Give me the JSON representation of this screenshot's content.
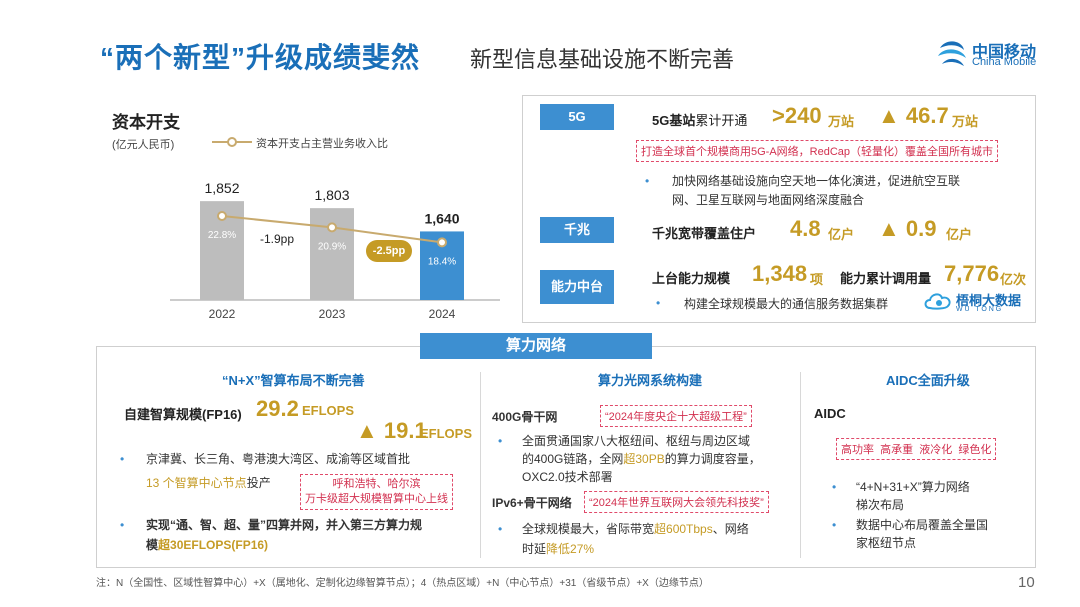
{
  "header": {
    "title": "“两个新型”升级成绩斐然",
    "subtitle": "新型信息基础设施不断完善",
    "logo_cn": "中国移动",
    "logo_en": "China Mobile"
  },
  "capex": {
    "title": "资本开支",
    "unit": "(亿元人民币)",
    "legend": "资本开支占主营业务收入比",
    "yoy_1": "-1.9pp",
    "yoy_2": "-2.5pp",
    "colors": {
      "gray": "#bdbdbd",
      "blue": "#3d8fd1",
      "line": "#c8aa6e"
    }
  },
  "chart_data": {
    "type": "bar",
    "categories": [
      "2022",
      "2023",
      "2024"
    ],
    "values": [
      1852,
      1803,
      1640
    ],
    "value_labels": [
      "1,852",
      "1,803",
      "1,640"
    ],
    "ratio": [
      22.8,
      20.9,
      18.4
    ],
    "ratio_labels": [
      "22.8%",
      "20.9%",
      "18.4%"
    ],
    "ylim": [
      0,
      2000
    ]
  },
  "panel": {
    "g5": {
      "tag": "5G",
      "label_bold": "5G基站",
      "label_rest": "累计开通",
      "value1": ">240",
      "unit1": "万站",
      "value2": "▲ 46.7",
      "unit2": "万站",
      "note": "打造全球首个规模商用5G-A网络，RedCap（轻量化）覆盖全国所有城市",
      "bullet_line1": "加快网络基础设施向空天地一体化演进，促进航空互联",
      "bullet_line2": "网、卫星互联网与地面网络深度融合"
    },
    "gigabit": {
      "tag": "千兆",
      "label": "千兆宽带覆盖住户",
      "value1": "4.8",
      "unit1": "亿户",
      "value2": "▲ 0.9",
      "unit2": "亿户"
    },
    "capability": {
      "tag": "能力中台",
      "label1": "上台能力规模",
      "value1": "1,348",
      "unit1": "项",
      "label2": "能力累计调用量",
      "value2": "7,776",
      "unit2": "亿次",
      "bullet": "构建全球规模最大的通信服务数据集群",
      "brand_cn": "梧桐大数据",
      "brand_en": "W U   T O N G"
    }
  },
  "network": {
    "band": "算力网络",
    "col1": {
      "head": "“N+X”智算布局不断完善",
      "label": "自建智算规模(FP16)",
      "value1": "29.2",
      "unit1": "EFLOPS",
      "value2": "▲ 19.1",
      "unit2": "EFLOPS",
      "bullet1_line1": "京津冀、长三角、粤港澳大湾区、成渝等区域首批",
      "bullet1_line2_hl": "13 个智算中心节点",
      "bullet1_line2_rest": "投产",
      "box_line1": "呼和浩特、哈尔滨",
      "box_line2": "万卡级超大规模智算中心上线",
      "bullet2_line1": "实现“通、智、超、量”四算并网，并入第三方算力规",
      "bullet2_line2_a": "模",
      "bullet2_line2_hl": "超30EFLOPS(FP16)"
    },
    "col2": {
      "head": "算力光网系统构建",
      "sub1": "400G骨干网",
      "award1": "“2024年度央企十大超级工程”",
      "b1_line1": "全面贯通国家八大枢纽间、枢纽与周边区域",
      "b1_line2_a": "的400G链路，全网",
      "b1_line2_hl": "超30PB",
      "b1_line2_b": "的算力调度容量，",
      "b1_line3": "OXC2.0技术部署",
      "sub2": "IPv6+骨干网络",
      "award2": "“2024年世界互联网大会领先科技奖”",
      "b2_line1_a": "全球规模最大，省际带宽",
      "b2_line1_hl": "超600Tbps",
      "b2_line1_b": "、网络",
      "b2_line2_a": "时延",
      "b2_line2_hl": "降低27%"
    },
    "col3": {
      "head": "AIDC全面升级",
      "sub": "AIDC",
      "tags": "高功率  高承重  液冷化  绿色化",
      "b1_line1": "“4+N+31+X”算力网络",
      "b1_line2": "梯次布局",
      "b2_line1": "数据中心布局覆盖全量国",
      "b2_line2": "家枢纽节点"
    }
  },
  "footer": {
    "note": "注：N（全国性、区域性智算中心）+X（属地化、定制化边缘智算节点）；4（热点区域）+N（中心节点）+31（省级节点）+X（边缘节点）",
    "page": "10"
  }
}
